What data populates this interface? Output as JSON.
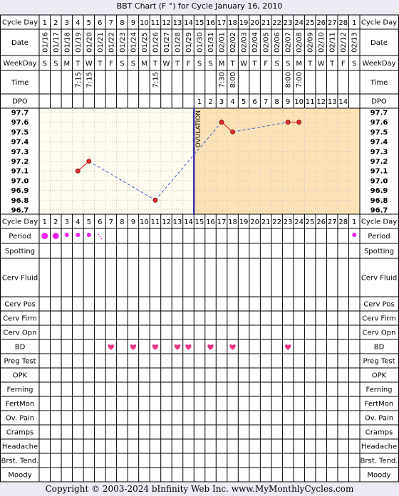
{
  "title": "BBT Chart (F °) for Cycle January 16, 2010",
  "footer": "Copyright © 2003-2024 bInfinity Web Inc.     www.MyMonthlyCycles.com",
  "colors": {
    "background": "#eeeaf4",
    "grid_line": "#000000",
    "pre_ovulation_fill": "#fffbee",
    "post_ovulation_fill": "#fbe3b5",
    "ovulation_line": "#3a3aa6",
    "temp_line": "#e0302a",
    "temp_dashed": "#3c5ccc",
    "period_dot": "#ee22ee",
    "heart": "#ee3388"
  },
  "row_labels": {
    "cycle_day": "Cycle Day",
    "date": "Date",
    "weekday": "WeekDay",
    "time": "Time",
    "dpo": "DPO",
    "period": "Period",
    "spotting": "Spotting",
    "cerv_fluid": "Cerv Fluid",
    "cerv_pos": "Cerv Pos",
    "cerv_firm": "Cerv Firm",
    "cerv_opn": "Cerv Opn",
    "bd": "BD",
    "preg_test": "Preg Test",
    "opk": "OPK",
    "ferning": "Ferning",
    "fertmon": "FertMon",
    "ov_pain": "Ov. Pain",
    "cramps": "Cramps",
    "headache": "Headache",
    "brst_tend": "Brst. Tend.",
    "moody": "Moody"
  },
  "ovulation_label": "OVULATION",
  "cycle_days": [
    "1",
    "2",
    "3",
    "4",
    "5",
    "6",
    "7",
    "8",
    "9",
    "10",
    "11",
    "12",
    "13",
    "14",
    "15",
    "16",
    "17",
    "18",
    "19",
    "20",
    "21",
    "22",
    "23",
    "24",
    "25",
    "26",
    "27",
    "28",
    "1"
  ],
  "dates": [
    "01/16",
    "01/17",
    "01/18",
    "01/19",
    "01/20",
    "01/21",
    "01/22",
    "01/23",
    "01/24",
    "01/25",
    "01/26",
    "01/27",
    "01/28",
    "01/29",
    "01/30",
    "01/31",
    "02/01",
    "02/02",
    "02/03",
    "02/04",
    "02/05",
    "02/06",
    "02/07",
    "02/08",
    "02/09",
    "02/10",
    "02/11",
    "02/12",
    "02/13"
  ],
  "weekdays": [
    "S",
    "S",
    "M",
    "T",
    "W",
    "T",
    "F",
    "S",
    "S",
    "M",
    "T",
    "W",
    "T",
    "F",
    "S",
    "S",
    "M",
    "T",
    "W",
    "T",
    "F",
    "S",
    "S",
    "M",
    "T",
    "W",
    "T",
    "F",
    "S"
  ],
  "times": [
    "",
    "",
    "",
    "7:15",
    "7:15",
    "",
    "",
    "",
    "",
    "",
    "7:15",
    "",
    "",
    "",
    "",
    "",
    "7:30",
    "8:00",
    "",
    "",
    "",
    "",
    "8:00",
    "7:00",
    "",
    "",
    "",
    "",
    ""
  ],
  "dpo": [
    "",
    "",
    "",
    "",
    "",
    "",
    "",
    "",
    "",
    "",
    "",
    "",
    "",
    "",
    "1",
    "2",
    "3",
    "4",
    "5",
    "6",
    "7",
    "8",
    "9",
    "10",
    "11",
    "12",
    "13",
    "14",
    ""
  ],
  "period": [
    "heavy",
    "heavy",
    "medium",
    "medium",
    "medium",
    "spotting",
    "",
    "",
    "",
    "",
    "",
    "",
    "",
    "",
    "",
    "",
    "",
    "",
    "",
    "",
    "",
    "",
    "",
    "",
    "",
    "",
    "",
    "",
    "medium"
  ],
  "bd": [
    false,
    false,
    false,
    false,
    false,
    false,
    true,
    false,
    true,
    false,
    true,
    false,
    true,
    true,
    false,
    true,
    false,
    true,
    false,
    false,
    false,
    false,
    true,
    false,
    false,
    false,
    false,
    false,
    false
  ],
  "chart_data": {
    "type": "line",
    "title": "BBT Chart (F °) for Cycle January 16, 2010",
    "xlabel": "Cycle Day",
    "ylabel": "",
    "ylim": [
      96.7,
      97.7
    ],
    "y_ticks": [
      "97.7",
      "97.6",
      "97.5",
      "97.4",
      "97.3",
      "97.2",
      "97.1",
      "97.0",
      "96.9",
      "96.8",
      "96.7"
    ],
    "ovulation_day": 14,
    "temperatures": [
      {
        "day": 4,
        "temp": 97.1
      },
      {
        "day": 5,
        "temp": 97.2
      },
      {
        "day": 11,
        "temp": 96.8
      },
      {
        "day": 17,
        "temp": 97.6
      },
      {
        "day": 18,
        "temp": 97.5
      },
      {
        "day": 23,
        "temp": 97.6
      },
      {
        "day": 24,
        "temp": 97.6
      }
    ]
  }
}
